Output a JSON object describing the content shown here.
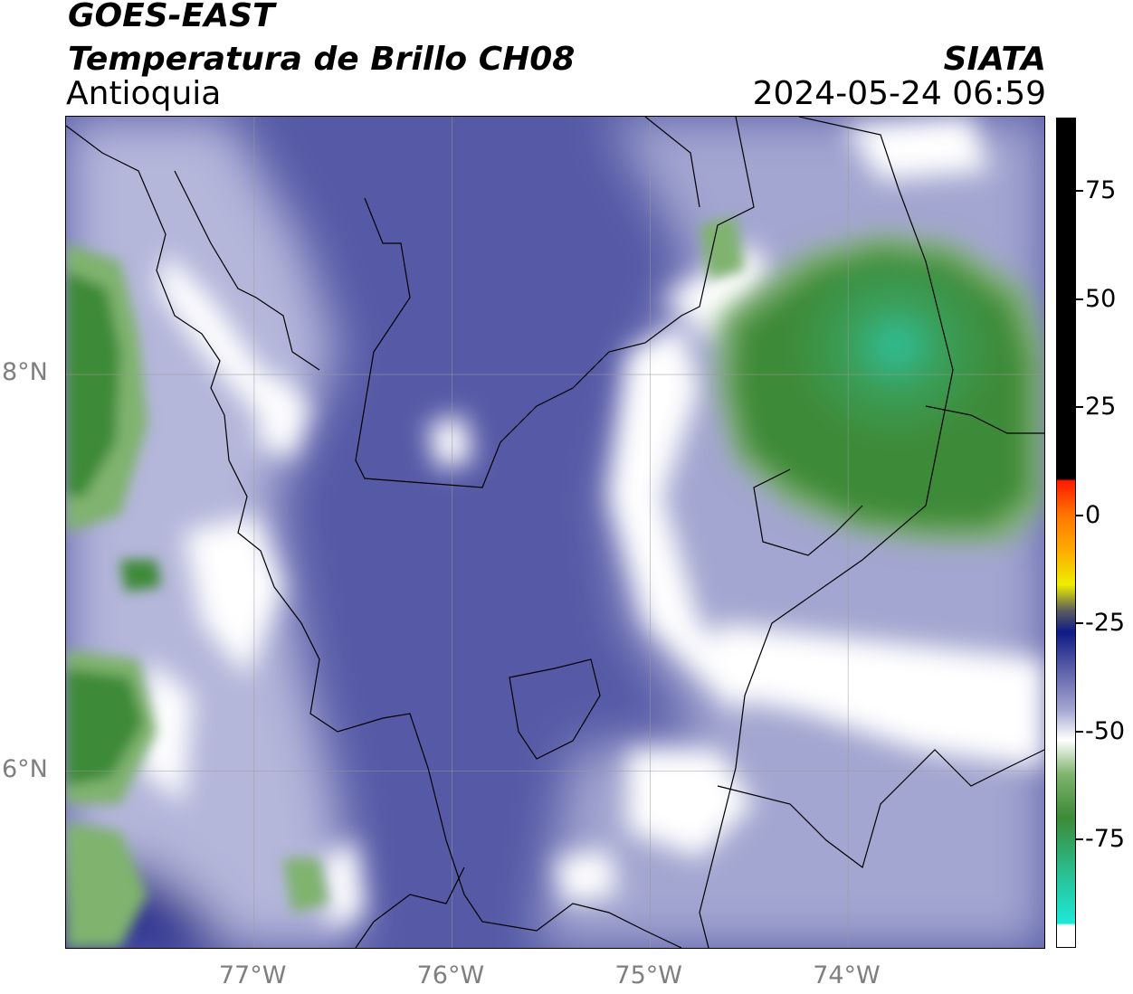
{
  "header": {
    "satellite": "GOES-EAST",
    "product": "Temperatura de Brillo CH08",
    "region": "Antioquia",
    "agency": "SIATA",
    "datetime": "2024-05-24 06:59"
  },
  "map": {
    "lon_range": [
      -77.95,
      -73.0
    ],
    "lat_range": [
      5.1,
      9.3
    ],
    "x_ticks": [
      {
        "value": -77,
        "label": "77°W"
      },
      {
        "value": -76,
        "label": "76°W"
      },
      {
        "value": -75,
        "label": "75°W"
      },
      {
        "value": -74,
        "label": "74°W"
      }
    ],
    "y_ticks": [
      {
        "value": 8,
        "label": "8°N"
      },
      {
        "value": 6,
        "label": "6°N"
      }
    ],
    "gridlines": true,
    "colors": {
      "background_blue": "#565aa6",
      "dark_blue": "#2e3190",
      "white": "#ffffff",
      "green": "#3d8a37",
      "teal": "#2fc3a0"
    }
  },
  "colorbar": {
    "range": [
      -100,
      92
    ],
    "ticks": [
      {
        "value": 75,
        "label": "75"
      },
      {
        "value": 50,
        "label": "50"
      },
      {
        "value": 25,
        "label": "25"
      },
      {
        "value": 0,
        "label": "0"
      },
      {
        "value": -25,
        "label": "-25"
      },
      {
        "value": -50,
        "label": "-50"
      },
      {
        "value": -75,
        "label": "-75"
      }
    ],
    "stops": [
      {
        "value": -100,
        "color": "#ffffff"
      },
      {
        "value": -95,
        "color": "#ffffff"
      },
      {
        "value": -94.5,
        "color": "#1fe8d8"
      },
      {
        "value": -85,
        "color": "#26c7a0"
      },
      {
        "value": -70,
        "color": "#3d8a37"
      },
      {
        "value": -60,
        "color": "#7fb36e"
      },
      {
        "value": -52,
        "color": "#ffffff"
      },
      {
        "value": -45,
        "color": "#a3a6d0"
      },
      {
        "value": -35,
        "color": "#565aa6"
      },
      {
        "value": -27,
        "color": "#0e1a86"
      },
      {
        "value": -22,
        "color": "#5d5d5d"
      },
      {
        "value": -16,
        "color": "#eeee00"
      },
      {
        "value": -8,
        "color": "#ffaa00"
      },
      {
        "value": 0,
        "color": "#ff7700"
      },
      {
        "value": 8,
        "color": "#ff1a00"
      },
      {
        "value": 8.5,
        "color": "#000000"
      },
      {
        "value": 92,
        "color": "#000000"
      }
    ]
  }
}
